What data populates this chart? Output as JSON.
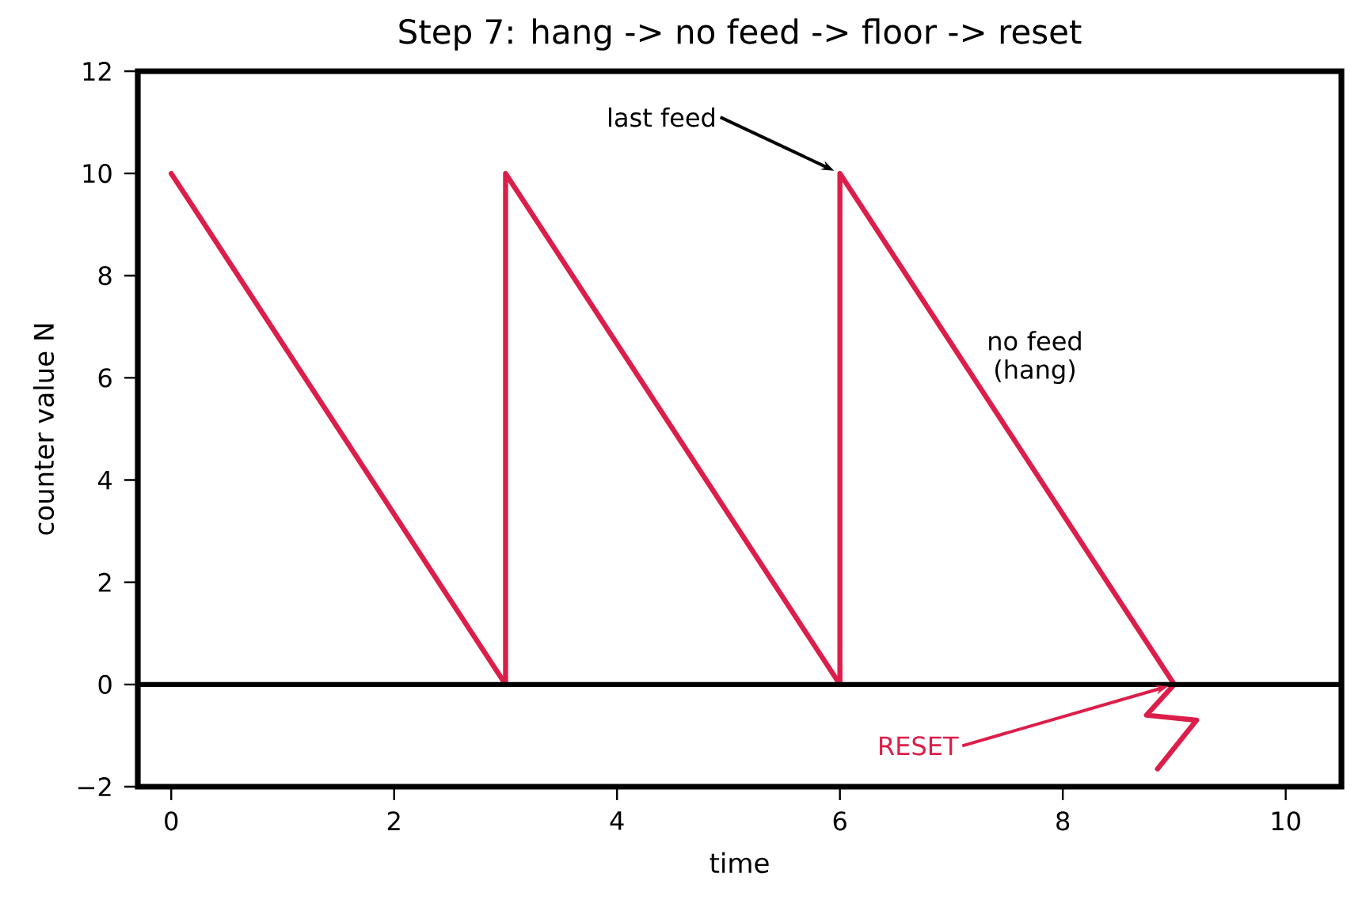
{
  "chart_data": {
    "type": "line",
    "title": "Step 7: hang -> no feed -> floor -> reset",
    "xlabel": "time",
    "ylabel": "counter value N",
    "series": [
      {
        "color": "#dc1e4a",
        "x": [
          0,
          3,
          3,
          6,
          6,
          9
        ],
        "values": [
          10,
          0,
          10,
          0,
          10,
          0
        ]
      },
      {
        "color": "#dc1e4a",
        "x": [
          9,
          8.75,
          9.2,
          8.85
        ],
        "values": [
          0,
          -0.6,
          -0.7,
          -1.65
        ]
      }
    ],
    "xlim": [
      -0.3,
      10.5
    ],
    "ylim": [
      -2,
      12
    ],
    "xticks": [
      0,
      2,
      4,
      6,
      8,
      10
    ],
    "yticks": [
      {
        "value": -2,
        "label": "−2"
      },
      0,
      2,
      4,
      6,
      8,
      10,
      12
    ],
    "ref_lines": [
      {
        "axis": "y",
        "value": 0,
        "color": "#000000"
      }
    ],
    "annotations": [
      {
        "text": "last feed",
        "x": 6,
        "y": 10
      },
      "no feed (hang)",
      {
        "text": "RESET",
        "x": 9,
        "y": 0
      }
    ],
    "marker": "none",
    "line_style": "solid",
    "grid": false
  }
}
